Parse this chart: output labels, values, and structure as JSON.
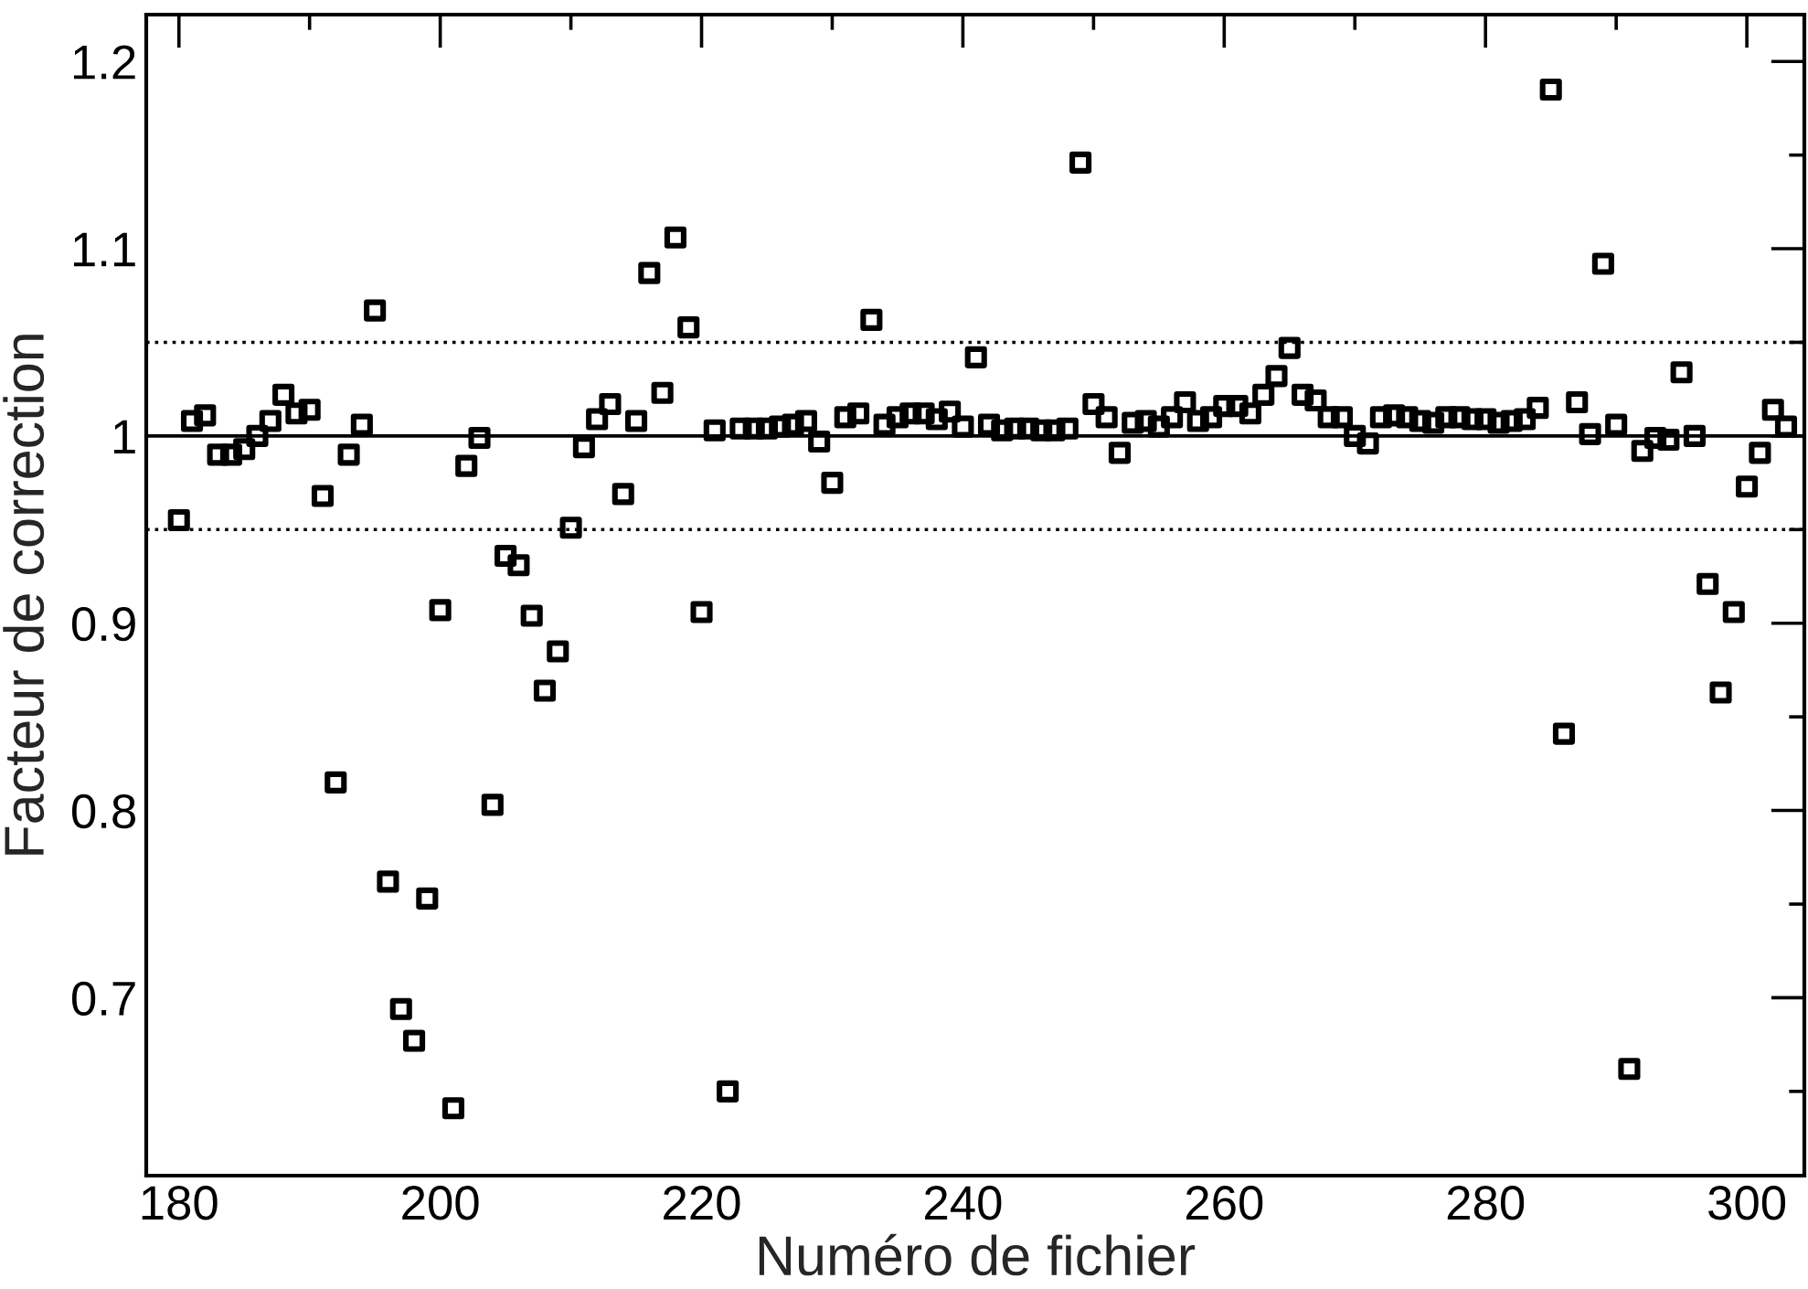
{
  "chart_data": {
    "type": "scatter",
    "xlabel": "Numéro de fichier",
    "ylabel": "Facteur de correction",
    "xlim": [
      177.5,
      304.4
    ],
    "ylim": [
      0.605,
      1.225
    ],
    "xticks": [
      180,
      {
        "value": 190,
        "label": null
      },
      200,
      {
        "value": 210,
        "label": null
      },
      220,
      {
        "value": 230,
        "label": null
      },
      240,
      {
        "value": 250,
        "label": null
      },
      260,
      {
        "value": 270,
        "label": null
      },
      280,
      {
        "value": 290,
        "label": null
      },
      300
    ],
    "yticks": [
      {
        "value": 0.65,
        "label": null
      },
      0.7,
      {
        "value": 0.75,
        "label": null
      },
      0.8,
      {
        "value": 0.85,
        "label": null
      },
      0.9,
      {
        "value": 0.95,
        "label": null
      },
      1,
      {
        "value": 1.05,
        "label": null
      },
      1.1,
      {
        "value": 1.15,
        "label": null
      },
      1.2
    ],
    "grid": false,
    "legend": false,
    "marker": "square",
    "ref_lines": [
      {
        "axis": "y",
        "value": 1,
        "line_style": "solid",
        "color": "#000000"
      },
      {
        "axis": "y",
        "value": 1.05,
        "line_style": "dotted",
        "color": "#000000"
      },
      {
        "axis": "y",
        "value": 0.95,
        "line_style": "dotted",
        "color": "#000000"
      }
    ],
    "series": [
      {
        "color": "#000000",
        "x": [
          180,
          181,
          182,
          183,
          184,
          185,
          186,
          187,
          188,
          189,
          190,
          191,
          192,
          193,
          194,
          195,
          196,
          197,
          198,
          199,
          200,
          201,
          202,
          203,
          204,
          205,
          206,
          207,
          208,
          209,
          210,
          211,
          212,
          213,
          214,
          215,
          216,
          217,
          218,
          219,
          220,
          221,
          222,
          223,
          224,
          225,
          226,
          227,
          228,
          229,
          230,
          231,
          232,
          233,
          234,
          235,
          236,
          237,
          238,
          239,
          240,
          241,
          242,
          243,
          244,
          245,
          246,
          247,
          248,
          249,
          250,
          251,
          252,
          253,
          254,
          255,
          256,
          257,
          258,
          259,
          260,
          261,
          262,
          263,
          264,
          265,
          266,
          267,
          268,
          269,
          270,
          271,
          272,
          273,
          274,
          275,
          276,
          277,
          278,
          279,
          280,
          281,
          282,
          283,
          284,
          285,
          286,
          287,
          288,
          289,
          290,
          291,
          292,
          293,
          294,
          295,
          296,
          297,
          298,
          299,
          300,
          301,
          302,
          303
        ],
        "values": [
          0.955,
          1.008,
          1.011,
          0.99,
          0.99,
          0.993,
          1.0,
          1.008,
          1.022,
          1.012,
          1.014,
          0.968,
          0.815,
          0.99,
          1.006,
          1.067,
          0.762,
          0.694,
          0.677,
          0.753,
          0.907,
          0.641,
          0.984,
          0.999,
          0.803,
          0.936,
          0.931,
          0.904,
          0.864,
          0.885,
          0.951,
          0.994,
          1.009,
          1.017,
          0.969,
          1.008,
          1.087,
          1.023,
          1.106,
          1.058,
          0.906,
          1.003,
          0.65,
          1.004,
          1.004,
          1.004,
          1.005,
          1.006,
          1.008,
          0.997,
          0.975,
          1.01,
          1.012,
          1.062,
          1.006,
          1.01,
          1.012,
          1.012,
          1.009,
          1.013,
          1.005,
          1.042,
          1.006,
          1.003,
          1.004,
          1.004,
          1.003,
          1.003,
          1.004,
          1.146,
          1.017,
          1.01,
          0.991,
          1.007,
          1.008,
          1.005,
          1.01,
          1.018,
          1.008,
          1.01,
          1.016,
          1.016,
          1.012,
          1.022,
          1.032,
          1.047,
          1.022,
          1.019,
          1.01,
          1.01,
          1.0,
          0.996,
          1.01,
          1.011,
          1.01,
          1.008,
          1.007,
          1.01,
          1.01,
          1.009,
          1.009,
          1.007,
          1.008,
          1.009,
          1.015,
          1.185,
          0.841,
          1.018,
          1.001,
          1.092,
          1.006,
          0.662,
          0.992,
          0.999,
          0.998,
          1.034,
          1.0,
          0.921,
          0.863,
          0.906,
          0.973,
          0.991,
          1.014,
          1.005
        ]
      }
    ]
  }
}
